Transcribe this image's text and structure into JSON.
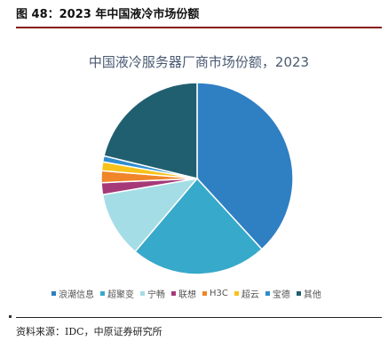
{
  "figure_header": "图 48：2023 年中国液冷市场份额",
  "source_note": "资料来源：IDC，中原证券研究所",
  "chart_data": {
    "type": "pie",
    "title": "中国液冷服务器厂商市场份额，2023",
    "legend_position": "bottom",
    "categories": [
      "浪潮信息",
      "超聚变",
      "宁畅",
      "联想",
      "H3C",
      "超云",
      "宝德",
      "其他"
    ],
    "values": [
      38.2,
      23.0,
      11.1,
      2.0,
      2.0,
      1.5,
      1.0,
      21.2
    ],
    "colors": [
      "#2f7fc3",
      "#37a9ca",
      "#a4dde5",
      "#a63a79",
      "#f0852a",
      "#f7c21a",
      "#2f8dcf",
      "#205f70"
    ]
  }
}
